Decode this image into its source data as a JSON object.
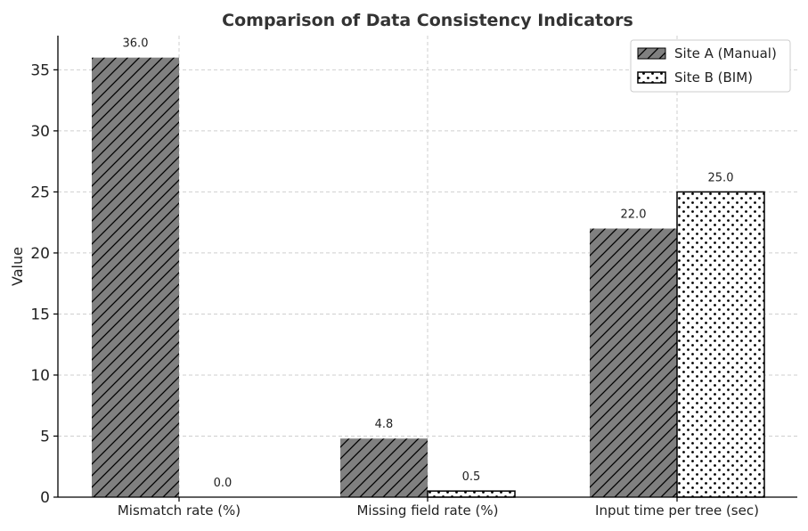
{
  "chart_data": {
    "type": "bar",
    "title": "Comparison of Data Consistency Indicators",
    "xlabel": "",
    "ylabel": "Value",
    "ylim": [
      0,
      37.8
    ],
    "yticks": [
      0,
      5,
      10,
      15,
      20,
      25,
      30,
      35
    ],
    "categories": [
      "Mismatch rate (%)",
      "Missing field rate (%)",
      "Input time per tree (sec)"
    ],
    "series": [
      {
        "name": "Site A (Manual)",
        "values": [
          36.0,
          4.8,
          22.0
        ],
        "labels": [
          "36.0",
          "4.8",
          "22.0"
        ],
        "color": "#808080",
        "pattern": "diagonal-hatch"
      },
      {
        "name": "Site B (BIM)",
        "values": [
          0.0,
          0.5,
          25.0
        ],
        "labels": [
          "0.0",
          "0.5",
          "25.0"
        ],
        "color": "#ffffff",
        "pattern": "dots"
      }
    ],
    "grid": true,
    "legend_position": "top-right"
  }
}
